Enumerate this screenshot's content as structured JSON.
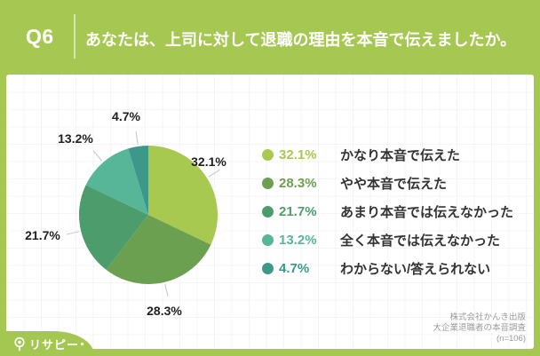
{
  "header": {
    "q_label": "Q6",
    "question": "あなたは、上司に対して退職の理由を本音で伝えましたか。"
  },
  "chart_data": {
    "type": "pie",
    "title": "あなたは、上司に対して退職の理由を本音で伝えましたか。",
    "labels": [
      "かなり本音で伝えた",
      "やや本音で伝えた",
      "あまり本音では伝えなかった",
      "全く本音では伝えなかった",
      "わからない/答えられない"
    ],
    "values": [
      32.1,
      28.3,
      21.7,
      13.2,
      4.7
    ],
    "value_labels": [
      "32.1%",
      "28.3%",
      "21.7%",
      "13.2%",
      "4.7%"
    ],
    "colors": [
      "#a8c94f",
      "#6aa050",
      "#4d9d6c",
      "#57b698",
      "#3d9889"
    ],
    "start_angle_deg": 0,
    "direction": "clockwise",
    "legend_position": "right",
    "n": 106
  },
  "legend": {
    "items": [
      {
        "pct": "32.1%",
        "label": "かなり本音で伝えた",
        "color": "#a8c94f"
      },
      {
        "pct": "28.3%",
        "label": "やや本音で伝えた",
        "color": "#6aa050"
      },
      {
        "pct": "21.7%",
        "label": "あまり本音では伝えなかった",
        "color": "#4d9d6c"
      },
      {
        "pct": "13.2%",
        "label": "全く本音では伝えなかった",
        "color": "#57b698"
      },
      {
        "pct": "4.7%",
        "label": "わからない/答えられない",
        "color": "#3d9889"
      }
    ]
  },
  "footer": {
    "source_line1": "株式会社かんき出版",
    "source_line2": "大企業退職者の本音調査",
    "source_line3": "(n=106)"
  },
  "logo": {
    "text": "リサピー",
    "icon": "magnifier-pin-icon"
  },
  "colors": {
    "brand_green": "#a6c853",
    "badge_green": "#a3c751",
    "text_dark": "#333333",
    "source_gray": "#9b9b9b",
    "leader_line": "#c3c3c3"
  }
}
